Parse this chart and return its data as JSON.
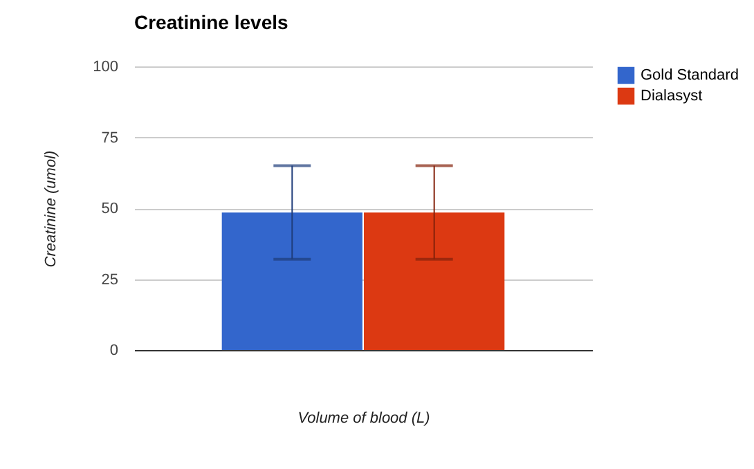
{
  "chart_data": {
    "type": "bar",
    "title": "Creatinine levels",
    "xlabel": "Volume of blood (L)",
    "ylabel": "Creatinine (umol)",
    "categories": [
      null
    ],
    "series": [
      {
        "name": "Gold Standard",
        "color": "#3366cc",
        "values": [
          48.5
        ],
        "errors": [
          [
            32,
            65
          ]
        ]
      },
      {
        "name": "Dialasyst",
        "color": "#dc3912",
        "values": [
          48.5
        ],
        "errors": [
          [
            32,
            65
          ]
        ]
      }
    ],
    "ylim": [
      0,
      100
    ],
    "yticks": [
      0,
      25,
      50,
      75,
      100
    ],
    "grid": "y",
    "legend": "top right"
  }
}
